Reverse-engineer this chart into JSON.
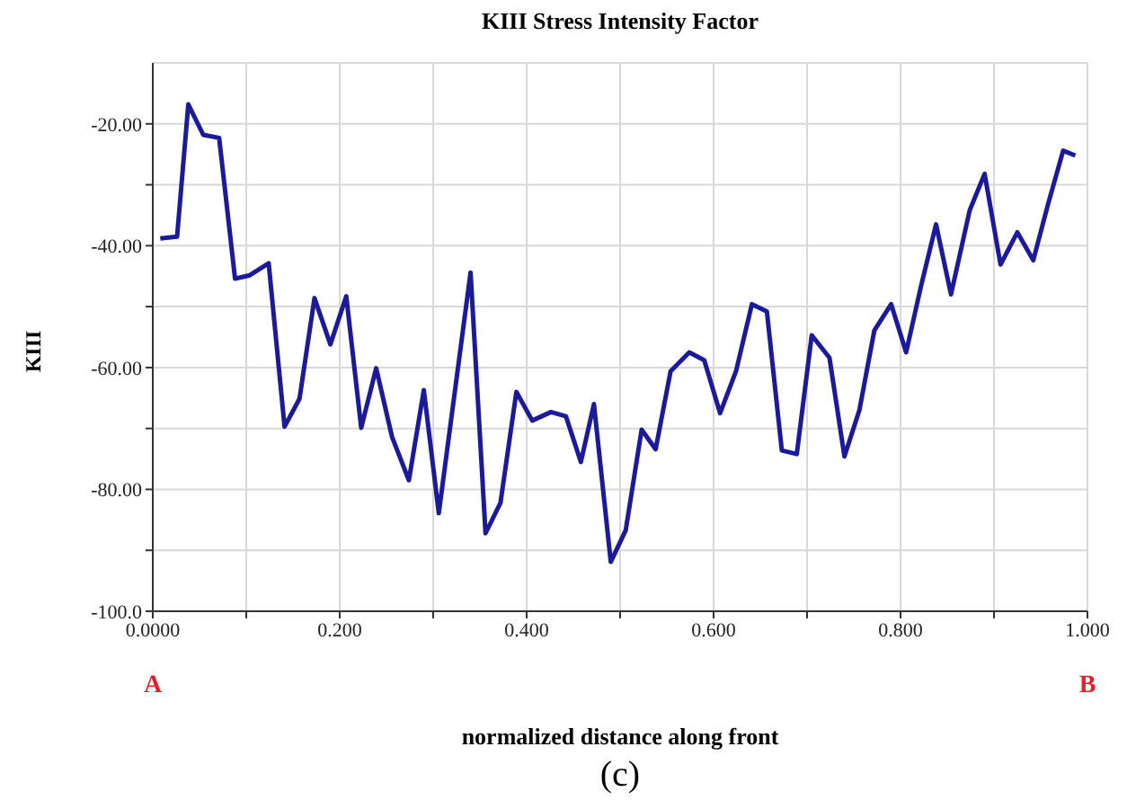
{
  "chart_data": {
    "type": "line",
    "title": "KIII Stress Intensity Factor",
    "xlabel": "normalized distance along front",
    "ylabel": "KIII",
    "annotations": [
      "A",
      "B",
      "(c)"
    ],
    "x": [
      0.008,
      0.026,
      0.038,
      0.054,
      0.071,
      0.088,
      0.103,
      0.124,
      0.141,
      0.157,
      0.173,
      0.19,
      0.207,
      0.223,
      0.239,
      0.256,
      0.274,
      0.29,
      0.306,
      0.34,
      0.356,
      0.372,
      0.389,
      0.406,
      0.426,
      0.442,
      0.458,
      0.472,
      0.49,
      0.506,
      0.523,
      0.538,
      0.554,
      0.574,
      0.59,
      0.607,
      0.624,
      0.641,
      0.657,
      0.673,
      0.689,
      0.705,
      0.724,
      0.74,
      0.756,
      0.772,
      0.79,
      0.806,
      0.822,
      0.838,
      0.854,
      0.874,
      0.89,
      0.907,
      0.925,
      0.942,
      0.958,
      0.974,
      0.987
    ],
    "series": [
      {
        "color": "#1a1a9a",
        "values": [
          -38.8,
          -38.5,
          -16.8,
          -21.8,
          -22.3,
          -45.4,
          -44.9,
          -42.9,
          -69.7,
          -65.1,
          -48.6,
          -56.2,
          -48.3,
          -69.9,
          -60.1,
          -71.4,
          -78.5,
          -63.7,
          -83.9,
          -44.4,
          -87.2,
          -82.2,
          -64,
          -68.7,
          -67.3,
          -68,
          -75.5,
          -66,
          -91.9,
          -86.7,
          -70.2,
          -73.4,
          -60.6,
          -57.5,
          -58.8,
          -67.5,
          -60.6,
          -49.6,
          -50.8,
          -73.6,
          -74.2,
          -54.7,
          -58.4,
          -74.6,
          -67,
          -53.9,
          -49.6,
          -57.5,
          -46.6,
          -36.5,
          -48,
          -34.2,
          -28.2,
          -43.1,
          -37.8,
          -42.4,
          -33.1,
          -24.4,
          -25.2
        ]
      }
    ],
    "xlim": [
      0,
      1
    ],
    "xticks": [
      {
        "value": 0,
        "label": "0.0000"
      },
      {
        "value": 0.1,
        "label": null
      },
      {
        "value": 0.2,
        "label": "0.200"
      },
      {
        "value": 0.3,
        "label": null
      },
      {
        "value": 0.4,
        "label": "0.400"
      },
      {
        "value": 0.5,
        "label": null
      },
      {
        "value": 0.6,
        "label": "0.600"
      },
      {
        "value": 0.7,
        "label": null
      },
      {
        "value": 0.8,
        "label": "0.800"
      },
      {
        "value": 0.9,
        "label": null
      },
      {
        "value": 1,
        "label": "1.000"
      }
    ],
    "ylim": [
      -100,
      -10
    ],
    "yticks": [
      {
        "value": -100,
        "label": "-100.0"
      },
      {
        "value": -90,
        "label": null
      },
      {
        "value": -80,
        "label": "-80.00"
      },
      {
        "value": -70,
        "label": null
      },
      {
        "value": -60,
        "label": "-60.00"
      },
      {
        "value": -50,
        "label": null
      },
      {
        "value": -40,
        "label": "-40.00"
      },
      {
        "value": -30,
        "label": null
      },
      {
        "value": -20,
        "label": "-20.00"
      }
    ],
    "grid": true,
    "marker": "none",
    "line_style": "solid"
  }
}
